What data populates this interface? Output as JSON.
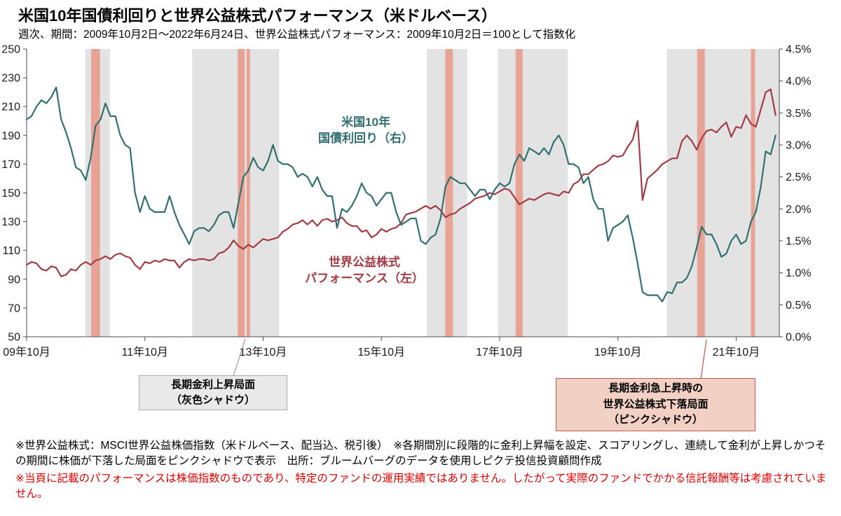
{
  "header": {
    "title": "米国10年国債利回りと世界公益株式パフォーマンス（米ドルベース）",
    "subtitle": "週次、期間：2009年10月2日～2022年6月24日、世界公益株式パフォーマンス：2009年10月2日＝100として指数化"
  },
  "chart_data": {
    "type": "line",
    "title": "米国10年国債利回りと世界公益株式パフォーマンス（米ドルベース）",
    "grid": false,
    "x_axis": {
      "unit": "decimal_year",
      "range": [
        2009.75,
        2022.48
      ],
      "ticks": [
        2009.75,
        2011.75,
        2013.75,
        2015.75,
        2017.75,
        2019.75,
        2021.75
      ],
      "tick_labels": [
        "09年10月",
        "11年10月",
        "13年10月",
        "15年10月",
        "17年10月",
        "19年10月",
        "21年10月"
      ]
    },
    "y_left": {
      "label": "世界公益株式パフォーマンス（2009年10月2日＝100）",
      "range": [
        50,
        250
      ],
      "ticks": [
        250,
        230,
        210,
        190,
        170,
        150,
        130,
        110,
        90,
        70,
        50
      ]
    },
    "y_right": {
      "label": "米国10年国債利回り",
      "range": [
        0.0,
        4.5
      ],
      "ticks": [
        4.5,
        4.0,
        3.5,
        3.0,
        2.5,
        2.0,
        1.5,
        1.0,
        0.5,
        0.0
      ],
      "tick_labels": [
        "4.5%",
        "4.0%",
        "3.5%",
        "3.0%",
        "2.5%",
        "2.0%",
        "1.5%",
        "1.0%",
        "0.5%",
        "0.0%"
      ]
    },
    "series": [
      {
        "name": "世界公益株式パフォーマンス（左）",
        "axis": "left",
        "color": "#a33b45",
        "x_start": 2009.75,
        "x_step": 0.0833333,
        "values": [
          100,
          102,
          101,
          97,
          96,
          99,
          98,
          92,
          93,
          97,
          96,
          100,
          102,
          100,
          103,
          104,
          106,
          104,
          107,
          108,
          106,
          105,
          100,
          97,
          102,
          101,
          103,
          102,
          104,
          103,
          103,
          98,
          102,
          104,
          103,
          104,
          104,
          103,
          104,
          108,
          109,
          112,
          117,
          113,
          111,
          114,
          112,
          115,
          118,
          117,
          118,
          119,
          123,
          125,
          128,
          129,
          131,
          128,
          131,
          127,
          131,
          132,
          130,
          131,
          133,
          129,
          127,
          127,
          123,
          124,
          119,
          121,
          125,
          123,
          125,
          126,
          129,
          135,
          136,
          137,
          139,
          141,
          139,
          141,
          138,
          133,
          135,
          136,
          139,
          141,
          143,
          146,
          147,
          148,
          150,
          149,
          151,
          153,
          152,
          147,
          142,
          144,
          146,
          145,
          147,
          149,
          150,
          149,
          148,
          151,
          150,
          156,
          158,
          163,
          163,
          166,
          169,
          170,
          172,
          176,
          175,
          176,
          182,
          187,
          200,
          145,
          160,
          163,
          166,
          170,
          172,
          174,
          174,
          186,
          190,
          186,
          180,
          188,
          193,
          194,
          192,
          196,
          199,
          189,
          196,
          195,
          204,
          198,
          196,
          208,
          220,
          222,
          204
        ]
      },
      {
        "name": "米国10年国債利回り（右）",
        "axis": "right",
        "color": "#32706f",
        "x_start": 2009.75,
        "x_step": 0.0833333,
        "values": [
          3.4,
          3.45,
          3.6,
          3.7,
          3.65,
          3.75,
          3.9,
          3.4,
          3.2,
          2.95,
          2.65,
          2.6,
          2.45,
          2.8,
          3.3,
          3.4,
          3.65,
          3.45,
          3.45,
          3.15,
          3.0,
          2.95,
          2.25,
          1.95,
          2.2,
          2.0,
          1.95,
          1.95,
          1.95,
          2.2,
          1.95,
          1.75,
          1.6,
          1.45,
          1.65,
          1.7,
          1.7,
          1.65,
          1.75,
          1.9,
          1.95,
          1.95,
          1.7,
          2.1,
          2.5,
          2.6,
          2.8,
          2.65,
          2.6,
          2.75,
          3.0,
          2.75,
          2.7,
          2.7,
          2.65,
          2.5,
          2.55,
          2.5,
          2.35,
          2.5,
          2.3,
          2.2,
          2.2,
          1.7,
          2.0,
          1.95,
          2.05,
          2.2,
          2.4,
          2.25,
          2.2,
          2.05,
          2.15,
          2.25,
          2.25,
          1.95,
          1.75,
          1.8,
          1.85,
          1.85,
          1.5,
          1.45,
          1.55,
          1.6,
          1.85,
          2.35,
          2.5,
          2.45,
          2.4,
          2.4,
          2.3,
          2.2,
          2.3,
          2.3,
          2.15,
          2.3,
          2.4,
          2.35,
          2.4,
          2.7,
          2.85,
          2.75,
          2.95,
          2.9,
          2.85,
          2.95,
          2.85,
          3.05,
          3.15,
          3.0,
          2.7,
          2.7,
          2.65,
          2.4,
          2.5,
          2.15,
          2.0,
          2.0,
          1.5,
          1.7,
          1.75,
          1.8,
          1.9,
          1.55,
          1.15,
          0.7,
          0.65,
          0.65,
          0.65,
          0.55,
          0.7,
          0.68,
          0.85,
          0.85,
          0.92,
          1.1,
          1.4,
          1.72,
          1.6,
          1.6,
          1.45,
          1.25,
          1.3,
          1.5,
          1.6,
          1.45,
          1.5,
          1.8,
          1.95,
          2.35,
          2.9,
          2.85,
          3.15
        ]
      }
    ],
    "shading": {
      "gray_bands": {
        "label": "長期金利上昇局面（灰色シャドウ）",
        "color": "#e3e3e3",
        "ranges": [
          [
            2010.74,
            2011.16
          ],
          [
            2012.55,
            2014.02
          ],
          [
            2016.52,
            2017.2
          ],
          [
            2017.72,
            2018.9
          ],
          [
            2020.58,
            2022.48
          ]
        ]
      },
      "pink_bands": {
        "label": "長期金利急上昇時の世界公益株式下落局面（ピンクシャドウ）",
        "color": "#e7a395",
        "ranges": [
          [
            2010.84,
            2010.99
          ],
          [
            2013.32,
            2013.44
          ],
          [
            2013.47,
            2013.53
          ],
          [
            2016.83,
            2016.96
          ],
          [
            2018.02,
            2018.14
          ],
          [
            2021.09,
            2021.22
          ],
          [
            2022.0,
            2022.07
          ]
        ]
      }
    },
    "series_labels": [
      {
        "lines": [
          "米国10年",
          "国債利回り（右）"
        ],
        "color": "#32706f",
        "x": 522,
        "y": 118
      },
      {
        "lines": [
          "世界公益株式",
          "パフォーマンス（左）"
        ],
        "color": "#a33b45",
        "x": 520,
        "y": 318
      }
    ]
  },
  "callouts": {
    "gray": {
      "lines": [
        "長期金利上昇局面",
        "（灰色シャドウ）"
      ]
    },
    "pink": {
      "lines": [
        "長期金利急上昇時の",
        "世界公益株式下落局面",
        "（ピンクシャドウ）"
      ]
    }
  },
  "footnotes": {
    "note1": "※世界公益株式：MSCI世界公益株価指数（米ドルベース、配当込、税引後）　※各期間別に段階的に金利上昇幅を設定、スコアリングし、連続して金利が上昇しかつその期間に株価が下落した局面をピンクシャドウで表示　出所：ブルームバーグのデータを使用しピクテ投信投資顧問作成",
    "note2": "※当頁に記載のパフォーマンスは株価指数のものであり、特定のファンドの運用実績ではありません。したがって実際のファンドでかかる信託報酬等は考慮されていません。"
  }
}
